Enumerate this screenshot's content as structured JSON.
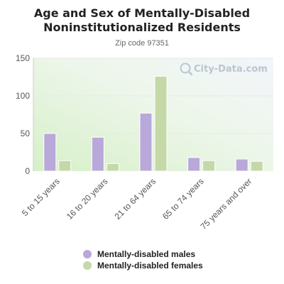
{
  "chart_data": {
    "type": "bar",
    "title_line1": "Age and Sex of Mentally-Disabled",
    "title_line2": "Noninstitutionalized Residents",
    "subtitle": "Zip code 97351",
    "categories": [
      "5 to 15 years",
      "16 to 20 years",
      "21 to 64 years",
      "65 to 74 years",
      "75 years and over"
    ],
    "series": [
      {
        "name": "Mentally-disabled males",
        "color": "#b9a8da",
        "values": [
          50,
          45,
          77,
          18,
          16
        ]
      },
      {
        "name": "Mentally-disabled females",
        "color": "#c5d9a8",
        "values": [
          14,
          10,
          126,
          14,
          13
        ]
      }
    ],
    "ylim": [
      0,
      150
    ],
    "yticks": [
      0,
      50,
      100,
      150
    ],
    "grid": true,
    "legend_position": "bottom",
    "watermark": "City-Data.com"
  }
}
